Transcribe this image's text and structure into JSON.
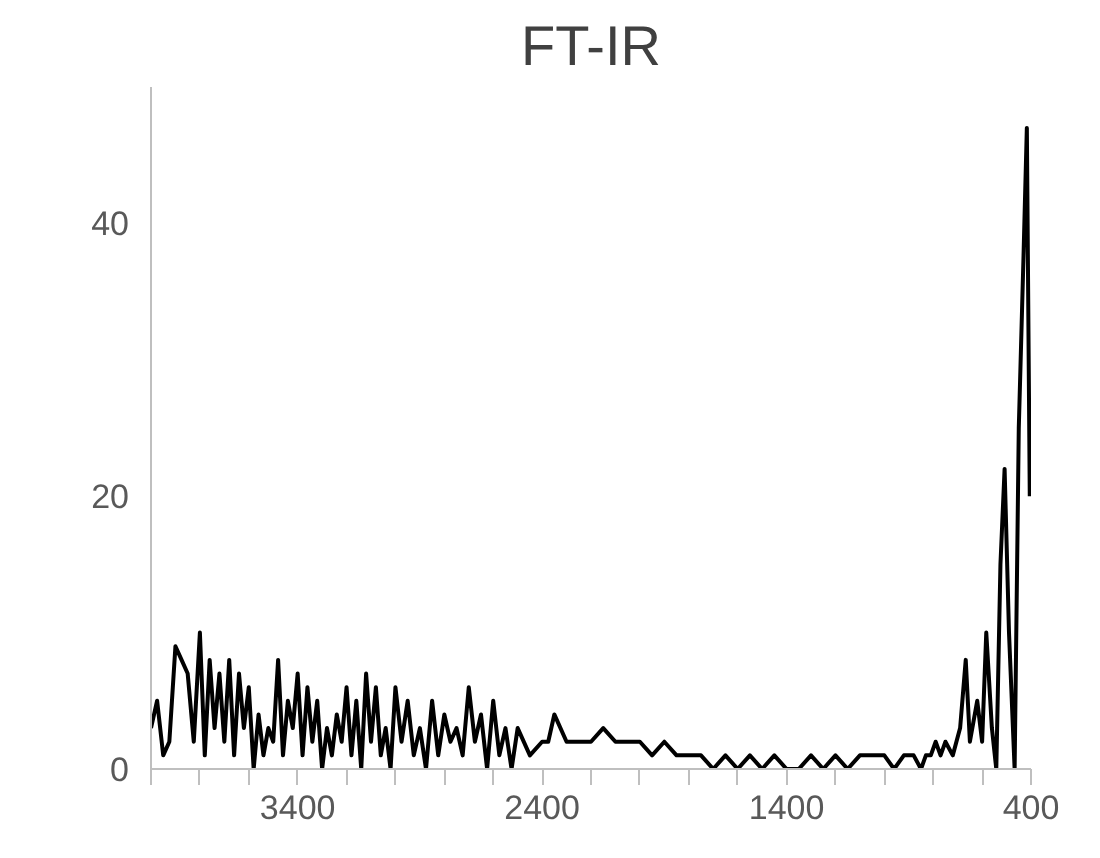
{
  "chart_data": {
    "type": "line",
    "title": "FT-IR",
    "x": [
      4000,
      3975,
      3950,
      3925,
      3900,
      3875,
      3850,
      3825,
      3800,
      3780,
      3760,
      3740,
      3720,
      3700,
      3680,
      3660,
      3640,
      3620,
      3600,
      3580,
      3560,
      3540,
      3520,
      3500,
      3480,
      3460,
      3440,
      3420,
      3400,
      3380,
      3360,
      3340,
      3320,
      3300,
      3280,
      3260,
      3240,
      3220,
      3200,
      3180,
      3160,
      3140,
      3120,
      3100,
      3080,
      3060,
      3040,
      3020,
      3000,
      2975,
      2950,
      2925,
      2900,
      2875,
      2850,
      2825,
      2800,
      2775,
      2750,
      2725,
      2700,
      2675,
      2650,
      2625,
      2600,
      2575,
      2550,
      2525,
      2500,
      2450,
      2400,
      2375,
      2350,
      2300,
      2250,
      2200,
      2150,
      2100,
      2050,
      2000,
      1950,
      1900,
      1850,
      1800,
      1750,
      1700,
      1650,
      1600,
      1550,
      1500,
      1450,
      1400,
      1350,
      1300,
      1250,
      1200,
      1150,
      1100,
      1050,
      1000,
      960,
      920,
      880,
      850,
      830,
      810,
      790,
      770,
      750,
      720,
      690,
      667,
      650,
      620,
      600,
      583,
      560,
      542,
      525,
      508,
      490,
      467,
      450,
      430,
      417,
      405
    ],
    "series": [
      {
        "color": "#000000",
        "values": [
          3,
          5,
          1,
          2,
          9,
          8,
          7,
          2,
          10,
          1,
          8,
          3,
          7,
          2,
          8,
          1,
          7,
          3,
          6,
          0,
          4,
          1,
          3,
          2,
          8,
          1,
          5,
          3,
          7,
          1,
          6,
          2,
          5,
          0,
          3,
          1,
          4,
          2,
          6,
          1,
          5,
          0,
          7,
          2,
          6,
          1,
          3,
          0,
          6,
          2,
          5,
          1,
          3,
          0,
          5,
          1,
          4,
          2,
          3,
          1,
          6,
          2,
          4,
          0,
          5,
          1,
          3,
          0,
          3,
          1,
          2,
          2,
          4,
          2,
          2,
          2,
          3,
          2,
          2,
          2,
          1,
          2,
          1,
          1,
          1,
          0,
          1,
          0,
          1,
          0,
          1,
          0,
          0,
          1,
          0,
          1,
          0,
          1,
          1,
          1,
          0,
          1,
          1,
          0,
          1,
          1,
          2,
          1,
          2,
          1,
          3,
          8,
          2,
          5,
          2,
          10,
          3,
          0,
          15,
          22,
          10,
          0,
          25,
          38,
          47,
          20
        ]
      }
    ],
    "xlim": [
      4000,
      400
    ],
    "xticks": [
      {
        "value": 4000,
        "label": null
      },
      {
        "value": 3800,
        "label": null
      },
      {
        "value": 3600,
        "label": null
      },
      3400,
      {
        "value": 3200,
        "label": null
      },
      {
        "value": 3000,
        "label": null
      },
      {
        "value": 2800,
        "label": null
      },
      {
        "value": 2600,
        "label": null
      },
      2400,
      {
        "value": 2200,
        "label": null
      },
      {
        "value": 2000,
        "label": null
      },
      {
        "value": 1800,
        "label": null
      },
      {
        "value": 1600,
        "label": null
      },
      1400,
      {
        "value": 1200,
        "label": null
      },
      {
        "value": 1000,
        "label": null
      },
      {
        "value": 800,
        "label": null
      },
      {
        "value": 600,
        "label": null
      },
      400
    ],
    "ylim": [
      0,
      50
    ],
    "yticks": [
      0,
      20,
      40
    ],
    "grid": false,
    "marker": "none",
    "line_style": "solid"
  }
}
